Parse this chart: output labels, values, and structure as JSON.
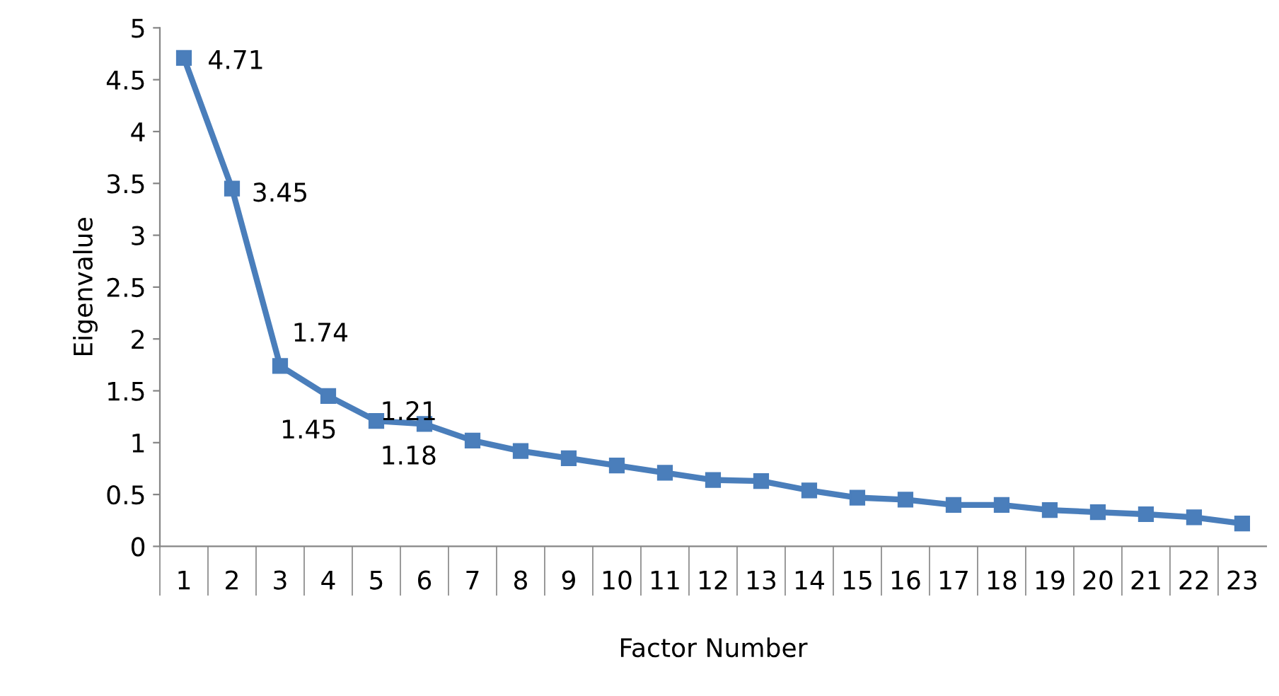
{
  "chart_data": {
    "type": "line",
    "xlabel": "Factor Number",
    "ylabel": "Eigenvalue",
    "categories": [
      "1",
      "2",
      "3",
      "4",
      "5",
      "6",
      "7",
      "8",
      "9",
      "10",
      "11",
      "12",
      "13",
      "14",
      "15",
      "16",
      "17",
      "18",
      "19",
      "20",
      "21",
      "22",
      "23"
    ],
    "series": [
      {
        "color": "#4a7ebb",
        "values": [
          4.71,
          3.45,
          1.74,
          1.45,
          1.21,
          1.18,
          1.02,
          0.92,
          0.85,
          0.78,
          0.71,
          0.64,
          0.63,
          0.54,
          0.47,
          0.45,
          0.4,
          0.4,
          0.35,
          0.33,
          0.31,
          0.28,
          0.22
        ],
        "value_labels": [
          "4.71",
          "3.45",
          "1.74",
          "1.45",
          "1.21",
          "1.18",
          null,
          null,
          null,
          null,
          null,
          null,
          null,
          null,
          null,
          null,
          null,
          null,
          null,
          null,
          null,
          null,
          null
        ]
      }
    ],
    "ylim": [
      0,
      5
    ],
    "yticks": [
      0,
      0.5,
      1,
      1.5,
      2,
      2.5,
      3,
      3.5,
      4,
      4.5,
      5
    ],
    "grid": false,
    "marker": "square",
    "line_style": "solid"
  }
}
